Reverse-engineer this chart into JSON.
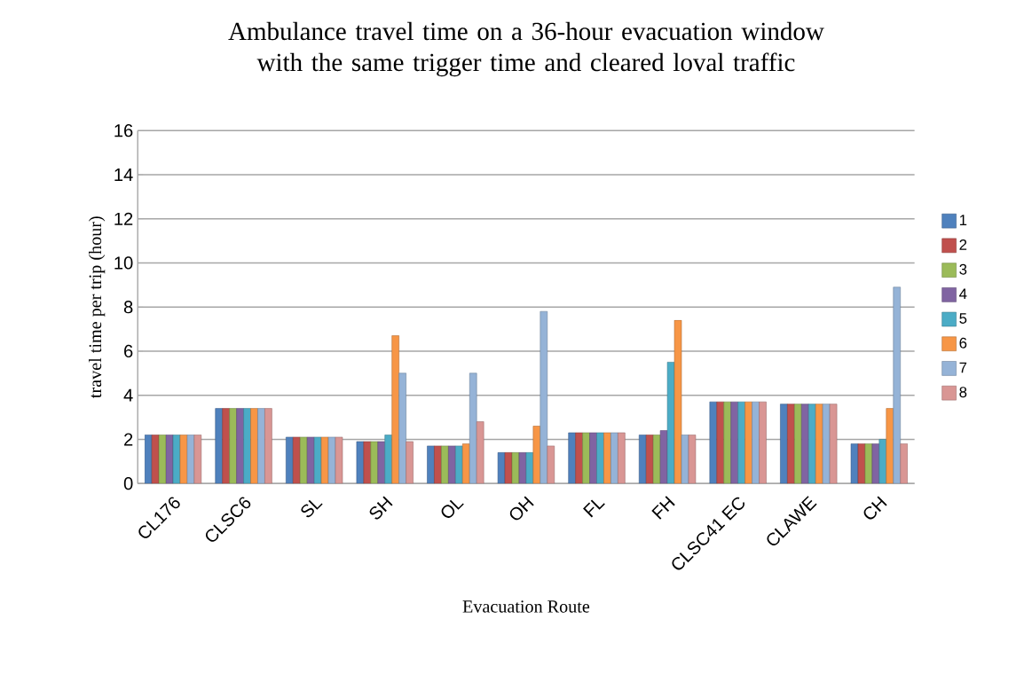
{
  "chart_data": {
    "type": "bar",
    "title": "Ambulance travel time on a 36-hour evacuation window with the same trigger time and cleared loval traffic",
    "xlabel": "Evacuation Route",
    "ylabel": "travel time per trip (hour)",
    "categories": [
      "CL176",
      "CLSC6",
      "SL",
      "SH",
      "OL",
      "OH",
      "FL",
      "FH",
      "CLSC41 EC",
      "CLAWE",
      "CH"
    ],
    "series": [
      {
        "name": "1",
        "color": "#4f81bd",
        "values": [
          2.2,
          3.4,
          2.1,
          1.9,
          1.7,
          1.4,
          2.3,
          2.2,
          3.7,
          3.6,
          1.8
        ]
      },
      {
        "name": "2",
        "color": "#c0504d",
        "values": [
          2.2,
          3.4,
          2.1,
          1.9,
          1.7,
          1.4,
          2.3,
          2.2,
          3.7,
          3.6,
          1.8
        ]
      },
      {
        "name": "3",
        "color": "#9bbb59",
        "values": [
          2.2,
          3.4,
          2.1,
          1.9,
          1.7,
          1.4,
          2.3,
          2.2,
          3.7,
          3.6,
          1.8
        ]
      },
      {
        "name": "4",
        "color": "#8064a2",
        "values": [
          2.2,
          3.4,
          2.1,
          1.9,
          1.7,
          1.4,
          2.3,
          2.4,
          3.7,
          3.6,
          1.8
        ]
      },
      {
        "name": "5",
        "color": "#4bacc6",
        "values": [
          2.2,
          3.4,
          2.1,
          2.2,
          1.7,
          1.4,
          2.3,
          5.5,
          3.7,
          3.6,
          2.0
        ]
      },
      {
        "name": "6",
        "color": "#f79646",
        "values": [
          2.2,
          3.4,
          2.1,
          6.7,
          1.8,
          2.6,
          2.3,
          7.4,
          3.7,
          3.6,
          3.4
        ]
      },
      {
        "name": "7",
        "color": "#95b3d7",
        "values": [
          2.2,
          3.4,
          2.1,
          5.0,
          5.0,
          7.8,
          2.3,
          2.2,
          3.7,
          3.6,
          8.9
        ]
      },
      {
        "name": "8",
        "color": "#d99694",
        "values": [
          2.2,
          3.4,
          2.1,
          1.9,
          2.8,
          1.7,
          2.3,
          2.2,
          3.7,
          3.6,
          1.8
        ]
      }
    ],
    "ylim": [
      0,
      16
    ],
    "yticks": [
      0,
      2,
      4,
      6,
      8,
      10,
      12,
      14,
      16
    ],
    "grid": "y",
    "legend": "right"
  }
}
